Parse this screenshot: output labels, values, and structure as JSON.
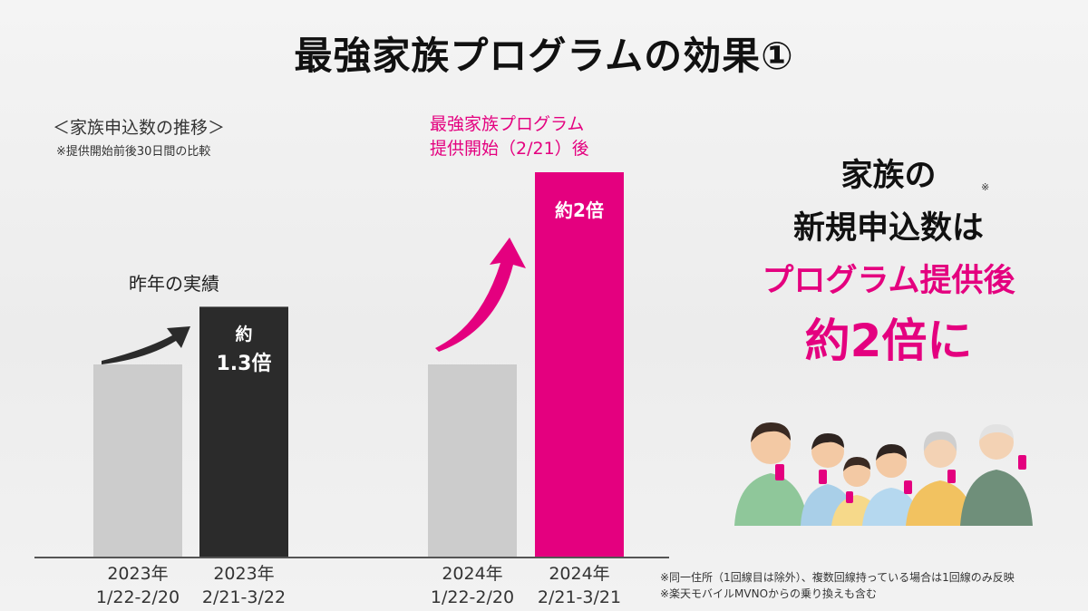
{
  "slide": {
    "title": "最強家族プログラムの効果①",
    "subtitle": "＜家族申込数の推移＞",
    "note": "※提供開始前後30日間の比較",
    "last_year_label": "昨年の実績",
    "program_label_line1": "最強家族プログラム",
    "program_label_line2": "提供開始（2/21）後",
    "headline_line1": "家族の",
    "headline_line2": "新規申込数は",
    "headline_line3": "プログラム提供後",
    "headline_line4": "約2倍に",
    "headline_mark": "※",
    "footnote1": "※同一住所（1回線目は除外）、複数回線持っている場合は1回線のみ反映",
    "footnote2": "※楽天モバイルMVNOからの乗り換えも含む"
  },
  "chart_data": {
    "type": "bar",
    "title": "",
    "ylabel": "",
    "bars": [
      {
        "label_line1": "2023年",
        "label_line2": "1/22-2/20",
        "value": 1.0,
        "data_label": "",
        "color": "#cccccc"
      },
      {
        "label_line1": "2023年",
        "label_line2": "2/21-3/22",
        "value": 1.3,
        "data_label_line1": "約",
        "data_label_line2": "1.3倍",
        "color": "#2b2b2b"
      },
      {
        "label_line1": "2024年",
        "label_line2": "1/22-2/20",
        "value": 1.0,
        "data_label": "",
        "color": "#cccccc"
      },
      {
        "label_line1": "2024年",
        "label_line2": "2/21-3/21",
        "value": 2.0,
        "data_label_line1": "約2倍",
        "color": "#e4007f"
      }
    ],
    "colors": {
      "accent": "#e4007f",
      "dark": "#2b2b2b",
      "light": "#cccccc"
    }
  }
}
